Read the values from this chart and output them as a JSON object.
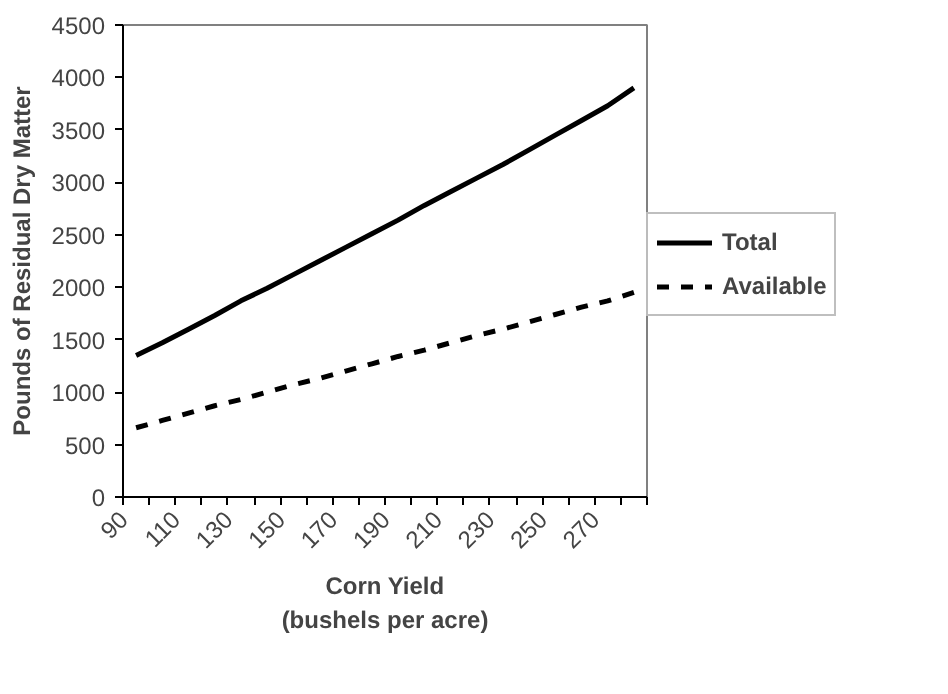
{
  "chart_data": {
    "type": "line",
    "xlabel": "Corn Yield\n(bushels per acre)",
    "ylabel": "Pounds of Residual Dry Matter",
    "x": [
      95,
      105,
      115,
      125,
      135,
      145,
      155,
      165,
      175,
      185,
      195,
      205,
      215,
      225,
      235,
      245,
      255,
      265,
      275,
      285
    ],
    "series": [
      {
        "name": "Total",
        "color": "#000000",
        "line_style": "solid",
        "values": [
          1350,
          1470,
          1600,
          1730,
          1870,
          1990,
          2120,
          2250,
          2380,
          2510,
          2640,
          2780,
          2910,
          3040,
          3170,
          3310,
          3450,
          3590,
          3730,
          3900
        ]
      },
      {
        "name": "Available",
        "color": "#000000",
        "line_style": "dashed",
        "values": [
          660,
          730,
          800,
          870,
          930,
          1000,
          1070,
          1130,
          1200,
          1270,
          1340,
          1400,
          1470,
          1540,
          1600,
          1670,
          1740,
          1810,
          1870,
          1950
        ]
      }
    ],
    "xlim": [
      90,
      290
    ],
    "xticks": [
      90,
      {
        "value": 100,
        "label": null
      },
      110,
      {
        "value": 120,
        "label": null
      },
      130,
      {
        "value": 140,
        "label": null
      },
      150,
      {
        "value": 160,
        "label": null
      },
      170,
      {
        "value": 180,
        "label": null
      },
      190,
      {
        "value": 200,
        "label": null
      },
      210,
      {
        "value": 220,
        "label": null
      },
      230,
      {
        "value": 240,
        "label": null
      },
      250,
      {
        "value": 260,
        "label": null
      },
      270,
      {
        "value": 280,
        "label": null
      },
      {
        "value": 290,
        "label": null
      }
    ],
    "ylim": [
      0,
      4500
    ],
    "yticks": [
      0,
      500,
      1000,
      1500,
      2000,
      2500,
      3000,
      3500,
      4000,
      4500
    ],
    "grid": false,
    "legend": "right",
    "marker": "none"
  }
}
